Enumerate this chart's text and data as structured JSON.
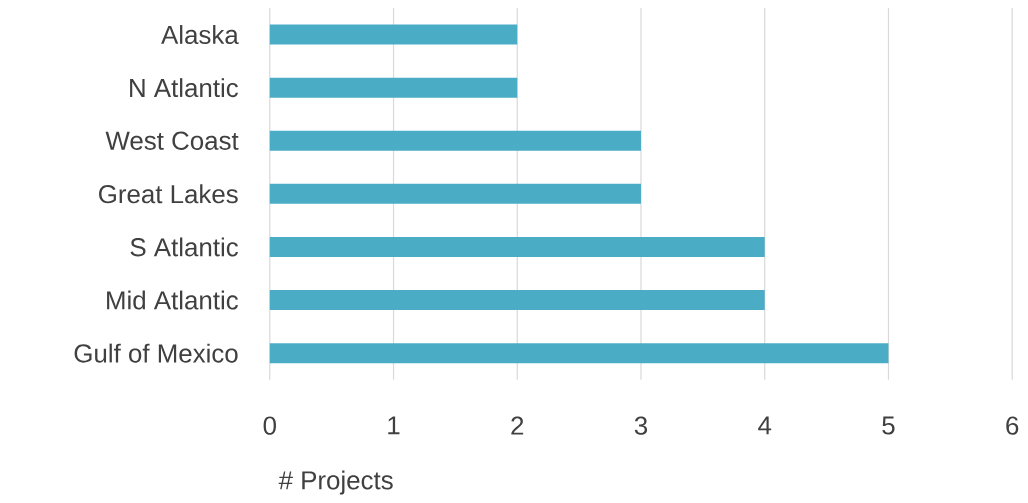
{
  "chart_data": {
    "type": "bar",
    "orientation": "horizontal",
    "categories": [
      "Alaska",
      "N Atlantic",
      "West Coast",
      "Great Lakes",
      "S Atlantic",
      "Mid Atlantic",
      "Gulf of Mexico"
    ],
    "values": [
      2,
      2,
      3,
      3,
      4,
      4,
      5
    ],
    "color": "#4bacc6",
    "xlim": [
      0,
      6
    ],
    "xticks": [
      0,
      1,
      2,
      3,
      4,
      5,
      6
    ],
    "grid": "x",
    "xlabel": "# Projects"
  }
}
